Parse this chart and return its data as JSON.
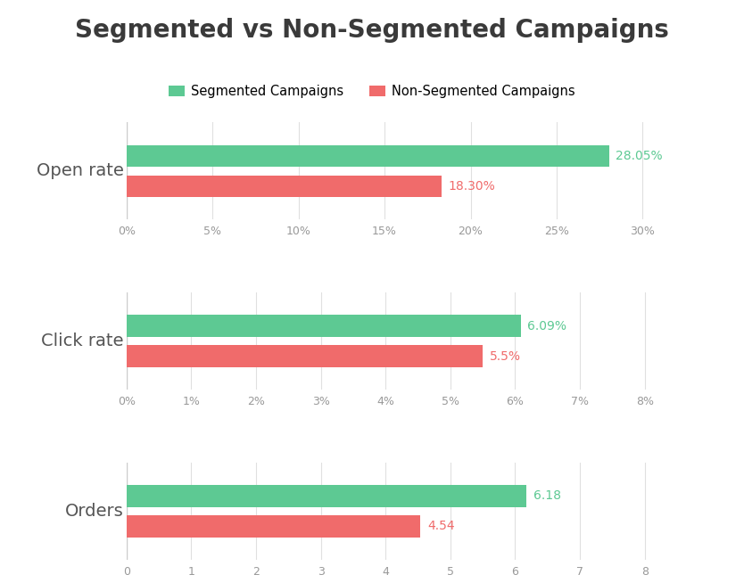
{
  "title": "Segmented vs Non-Segmented Campaigns",
  "title_fontsize": 20,
  "title_color": "#3a3a3a",
  "legend_labels": [
    "Segmented Campaigns",
    "Non-Segmented Campaigns"
  ],
  "segmented_color": "#5DC993",
  "non_segmented_color": "#F06B6B",
  "background_color": "#ffffff",
  "charts": [
    {
      "label": "Open rate",
      "segmented_value": 28.05,
      "non_segmented_value": 18.3,
      "xlim": [
        0,
        32
      ],
      "xticks": [
        0,
        5,
        10,
        15,
        20,
        25,
        30
      ],
      "xtick_labels": [
        "0%",
        "5%",
        "10%",
        "15%",
        "20%",
        "25%",
        "30%"
      ],
      "value_labels": [
        "28.05%",
        "18.30%"
      ]
    },
    {
      "label": "Click rate",
      "segmented_value": 6.09,
      "non_segmented_value": 5.5,
      "xlim": [
        0,
        8.5
      ],
      "xticks": [
        0,
        1,
        2,
        3,
        4,
        5,
        6,
        7,
        8
      ],
      "xtick_labels": [
        "0%",
        "1%",
        "2%",
        "3%",
        "4%",
        "5%",
        "6%",
        "7%",
        "8%"
      ],
      "value_labels": [
        "6.09%",
        "5.5%"
      ]
    },
    {
      "label": "Orders",
      "segmented_value": 6.18,
      "non_segmented_value": 4.54,
      "xlim": [
        0,
        8.5
      ],
      "xticks": [
        0,
        1,
        2,
        3,
        4,
        5,
        6,
        7,
        8
      ],
      "xtick_labels": [
        "0",
        "1",
        "2",
        "3",
        "4",
        "5",
        "6",
        "7",
        "8"
      ],
      "value_labels": [
        "6.18",
        "4.54"
      ]
    }
  ],
  "bar_height": 0.18,
  "bar_gap": 0.07,
  "grid_color": "#e0e0e0",
  "tick_color": "#999999",
  "label_fontsize": 14,
  "value_fontsize": 10,
  "ylabel_color": "#555555"
}
